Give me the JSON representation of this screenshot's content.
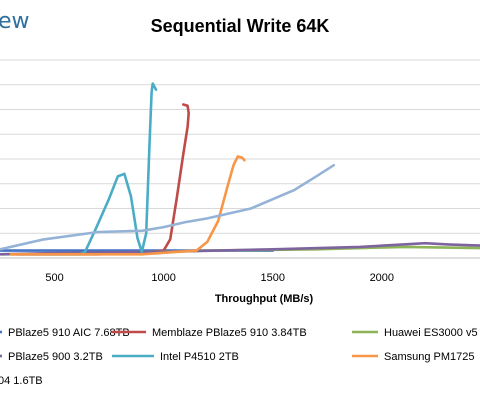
{
  "logo": {
    "text": "ew",
    "color": "#2e6f9e"
  },
  "chart_data": {
    "type": "line",
    "title": "Sequential Write 64K",
    "xlabel": "Throughput (MB/s)",
    "ylabel": "",
    "xlim": [
      250,
      2450
    ],
    "ylim": [
      0,
      8
    ],
    "x_ticks": [
      500,
      1000,
      1500,
      2000
    ],
    "grid": "horizontal",
    "legend_position": "bottom",
    "series": [
      {
        "name": "PBlaze5 910 AIC 7.68TB",
        "color": "#4472c4",
        "points": [
          [
            250,
            0.3
          ],
          [
            600,
            0.3
          ],
          [
            1000,
            0.3
          ],
          [
            1500,
            0.3
          ]
        ]
      },
      {
        "name": "Memblaze PBlaze5 910 3.84TB",
        "color": "#be4b48",
        "points": [
          [
            300,
            0.15
          ],
          [
            700,
            0.15
          ],
          [
            900,
            0.2
          ],
          [
            1000,
            0.3
          ],
          [
            1030,
            0.75
          ],
          [
            1060,
            2.4
          ],
          [
            1090,
            4.2
          ],
          [
            1110,
            5.3
          ],
          [
            1115,
            5.85
          ],
          [
            1110,
            6.15
          ],
          [
            1090,
            6.2
          ]
        ]
      },
      {
        "name": "Huawei ES3000 v5",
        "color": "#8db457",
        "points": [
          [
            260,
            0.15
          ],
          [
            700,
            0.2
          ],
          [
            1200,
            0.3
          ],
          [
            1700,
            0.35
          ],
          [
            2100,
            0.45
          ],
          [
            2450,
            0.4
          ]
        ]
      },
      {
        "name": "PBlaze5 900 3.2TB",
        "color": "#7e649e",
        "points": [
          [
            250,
            0.15
          ],
          [
            500,
            0.2
          ],
          [
            1000,
            0.25
          ],
          [
            1500,
            0.35
          ],
          [
            1900,
            0.45
          ],
          [
            2200,
            0.6
          ],
          [
            2300,
            0.55
          ],
          [
            2450,
            0.5
          ]
        ]
      },
      {
        "name": "Intel P4510 2TB",
        "color": "#4bacc6",
        "points": [
          [
            330,
            0.15
          ],
          [
            620,
            0.15
          ],
          [
            640,
            0.25
          ],
          [
            690,
            1.2
          ],
          [
            750,
            2.4
          ],
          [
            790,
            3.3
          ],
          [
            820,
            3.4
          ],
          [
            850,
            2.5
          ],
          [
            880,
            0.8
          ],
          [
            900,
            0.25
          ],
          [
            920,
            1.0
          ],
          [
            935,
            4.6
          ],
          [
            945,
            6.7
          ],
          [
            950,
            7.05
          ],
          [
            965,
            6.8
          ]
        ]
      },
      {
        "name": "Samsung PM1725",
        "color": "#f79646",
        "points": [
          [
            300,
            0.15
          ],
          [
            900,
            0.15
          ],
          [
            1150,
            0.3
          ],
          [
            1200,
            0.65
          ],
          [
            1250,
            1.5
          ],
          [
            1290,
            2.8
          ],
          [
            1320,
            3.75
          ],
          [
            1340,
            4.1
          ],
          [
            1360,
            4.05
          ],
          [
            1370,
            3.95
          ]
        ]
      },
      {
        "name": "04 1.6TB",
        "color": "#95b3d7",
        "points": [
          [
            250,
            0.35
          ],
          [
            450,
            0.75
          ],
          [
            700,
            1.05
          ],
          [
            900,
            1.1
          ],
          [
            1000,
            1.25
          ],
          [
            1100,
            1.45
          ],
          [
            1200,
            1.6
          ],
          [
            1400,
            2.0
          ],
          [
            1600,
            2.75
          ],
          [
            1700,
            3.3
          ],
          [
            1780,
            3.75
          ]
        ]
      }
    ]
  }
}
